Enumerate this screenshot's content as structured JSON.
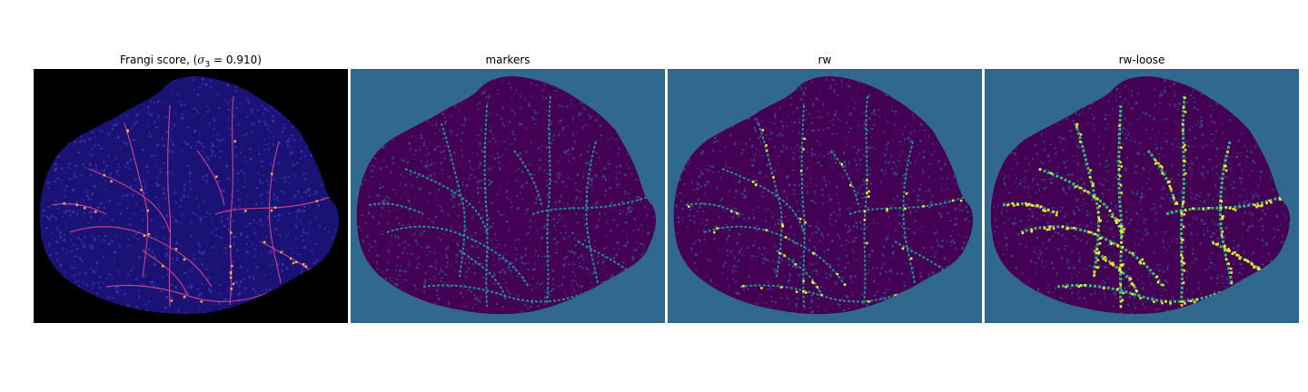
{
  "figure": {
    "panels": [
      {
        "title_prefix": "Frangi score, (",
        "title_symbol": "σ",
        "title_subscript": "3",
        "title_suffix": " = 0.910)",
        "background": "#000000",
        "blob_fill": "#1b1275",
        "texture_color": "#3a2fb0",
        "vessel_color": "#c23d8a",
        "highlight_color": "#f1b046"
      },
      {
        "title": "markers",
        "background": "#31688e",
        "blob_fill": "#440154",
        "texture_color": "#3a3f8c",
        "vessel_color": "#21918c",
        "highlight_color": "#21918c"
      },
      {
        "title": "rw",
        "background": "#31688e",
        "blob_fill": "#440154",
        "texture_color": "#3a3f8c",
        "vessel_color": "#21918c",
        "highlight_color": "#fde725"
      },
      {
        "title": "rw-loose",
        "background": "#31688e",
        "blob_fill": "#440154",
        "texture_color": "#3a3f8c",
        "vessel_color": "#35b779",
        "highlight_color": "#fde725"
      }
    ]
  }
}
